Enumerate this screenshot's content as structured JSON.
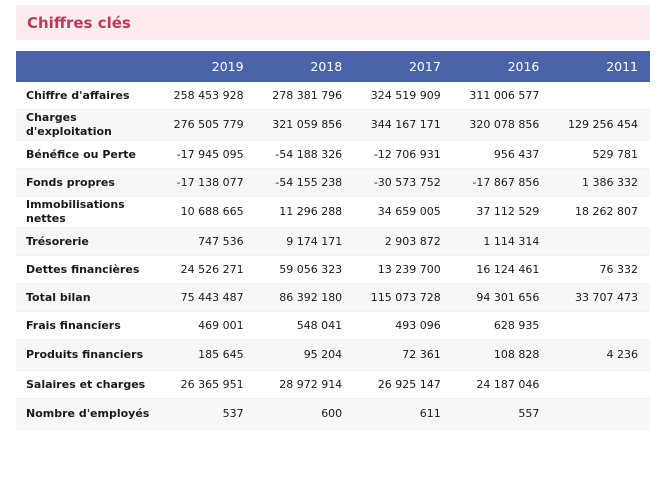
{
  "title": "Chiffres clés",
  "columns": [
    "2019",
    "2018",
    "2017",
    "2016",
    "2011"
  ],
  "rows": [
    {
      "label": "Chiffre d'affaires",
      "values": [
        "258 453 928",
        "278 381 796",
        "324 519 909",
        "311 006 577",
        ""
      ]
    },
    {
      "label": "Charges d'exploitation",
      "values": [
        "276 505 779",
        "321 059 856",
        "344 167 171",
        "320 078 856",
        "129 256 454"
      ]
    },
    {
      "label": "Bénéfice ou Perte",
      "values": [
        "-17 945 095",
        "-54 188 326",
        "-12 706 931",
        "956 437",
        "529 781"
      ]
    },
    {
      "label": "Fonds propres",
      "values": [
        "-17 138 077",
        "-54 155 238",
        "-30 573 752",
        "-17 867 856",
        "1 386 332"
      ]
    },
    {
      "label": "Immobilisations nettes",
      "values": [
        "10 688 665",
        "11 296 288",
        "34 659 005",
        "37 112 529",
        "18 262 807"
      ]
    },
    {
      "label": "Trésorerie",
      "values": [
        "747 536",
        "9 174 171",
        "2 903 872",
        "1 114 314",
        ""
      ]
    },
    {
      "label": "Dettes financières",
      "values": [
        "24 526 271",
        "59 056 323",
        "13 239 700",
        "16 124 461",
        "76 332"
      ]
    },
    {
      "label": "Total bilan",
      "values": [
        "75 443 487",
        "86 392 180",
        "115 073 728",
        "94 301 656",
        "33 707 473"
      ]
    },
    {
      "label": "Frais financiers",
      "values": [
        "469 001",
        "548 041",
        "493 096",
        "628 935",
        ""
      ]
    },
    {
      "label": "Produits financiers",
      "values": [
        "185 645",
        "95 204",
        "72 361",
        "108 828",
        "4 236"
      ]
    },
    {
      "label": "Salaires et charges",
      "values": [
        "26 365 951",
        "28 972 914",
        "26 925 147",
        "24 187 046",
        ""
      ]
    },
    {
      "label": "Nombre d'employés",
      "values": [
        "537",
        "600",
        "611",
        "557",
        ""
      ]
    }
  ]
}
